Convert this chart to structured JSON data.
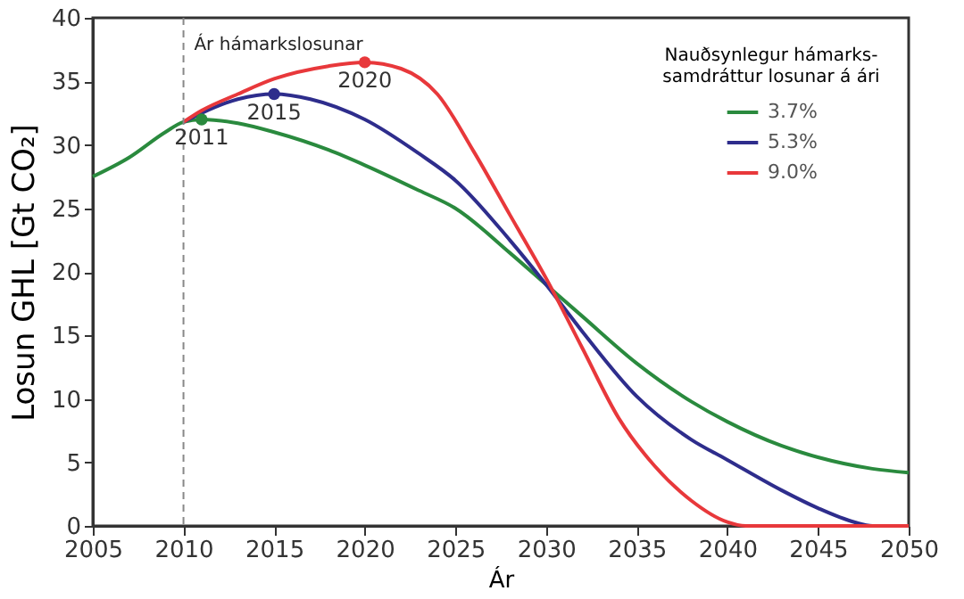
{
  "chart_data": {
    "type": "line",
    "xlabel": "Ár",
    "ylabel": "Losun GHL  [Gt CO₂]",
    "legend_title": "Nauðsynlegur hámarks-\nsamdráttur losunar á ári",
    "legend": "top right",
    "grid": false,
    "line_style": "solid",
    "xlim": [
      2005,
      2050
    ],
    "xticks": [
      2005,
      2010,
      2015,
      2020,
      2025,
      2030,
      2035,
      2040,
      2045,
      2050
    ],
    "ylim": [
      0,
      40
    ],
    "yticks": [
      0,
      5,
      10,
      15,
      20,
      25,
      30,
      35,
      40
    ],
    "series": [
      {
        "name": "3.7%",
        "color": "#2a8a3e",
        "x": [
          2005,
          2007,
          2009,
          2010,
          2011,
          2013,
          2015,
          2018,
          2020,
          2023,
          2025,
          2028,
          2030,
          2032,
          2035,
          2038,
          2040,
          2043,
          2045,
          2048,
          2050
        ],
        "values": [
          27.5,
          29,
          31,
          31.8,
          32,
          31.7,
          31,
          29.6,
          28.4,
          26.4,
          25,
          21.5,
          19,
          16.5,
          12.8,
          9.8,
          8.2,
          6.3,
          5.4,
          4.5,
          4.2
        ]
      },
      {
        "name": "5.3%",
        "color": "#2e2d8c",
        "x": [
          2010,
          2011,
          2013,
          2015,
          2017,
          2020,
          2023,
          2025,
          2028,
          2030,
          2032,
          2035,
          2038,
          2040,
          2043,
          2045,
          2047,
          2048,
          2050
        ],
        "values": [
          31.8,
          32.5,
          33.6,
          34,
          33.6,
          32,
          29.3,
          27.2,
          22.5,
          19,
          15.3,
          10.2,
          6.8,
          5.2,
          2.8,
          1.4,
          0.3,
          0,
          0
        ]
      },
      {
        "name": "9.0%",
        "color": "#e8383b",
        "x": [
          2010,
          2011,
          2013,
          2015,
          2018,
          2020,
          2022,
          2024,
          2026,
          2028,
          2030,
          2032,
          2034,
          2036,
          2038,
          2040,
          2041,
          2050
        ],
        "values": [
          31.8,
          32.7,
          34,
          35.2,
          36.2,
          36.5,
          36,
          34,
          29.5,
          24.5,
          19.5,
          14,
          8.5,
          4.7,
          2,
          0.3,
          0,
          0
        ]
      },
      {
        "type": "scatter",
        "x": [
          2011,
          2015,
          2020
        ],
        "values": [
          32,
          34,
          36.5
        ],
        "colors": [
          "#2a8a3e",
          "#2e2d8c",
          "#e8383b"
        ]
      }
    ],
    "ref_lines": [
      {
        "axis": "x",
        "value": 2010,
        "label": "Ár hámarkslosunar",
        "color": "#888888",
        "line_style": "dashed"
      }
    ],
    "annotations": [
      {
        "text": "2011",
        "x": 2011,
        "y": 32
      },
      {
        "text": "2015",
        "x": 2015,
        "y": 34
      },
      {
        "text": "2020",
        "x": 2020,
        "y": 36.5
      }
    ]
  }
}
